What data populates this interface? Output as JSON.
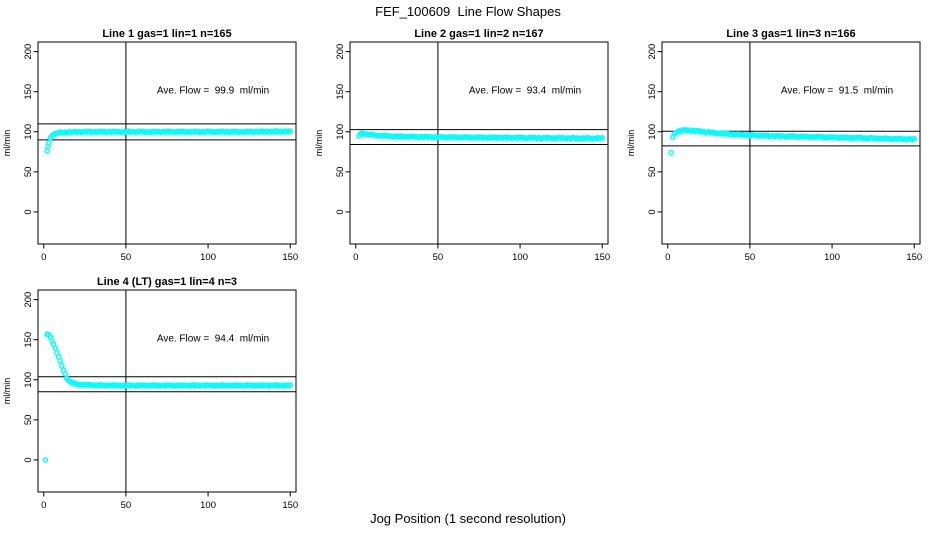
{
  "figure": {
    "title": "FEF_100609  Line Flow Shapes",
    "x_axis_label": "Jog Position (1 second resolution)",
    "background_color": "#ffffff",
    "axis_color": "#000000",
    "marker_color": "#00FFFF"
  },
  "chart_data": [
    {
      "type": "scatter",
      "title": "Line 1 gas=1 lin=1 n=165",
      "annotation": "Ave. Flow =  99.9  ml/min",
      "ave_flow_ml_min": 99.9,
      "n": 165,
      "ylabel": "ml/min",
      "x_ticks": [
        0,
        50,
        100,
        150
      ],
      "y_ticks": [
        0,
        50,
        100,
        150,
        200
      ],
      "xlim": [
        -3.5,
        153.5
      ],
      "ylim": [
        -40,
        212
      ],
      "vline_x": 50,
      "tolerance_lines": [
        89.9,
        109.9
      ],
      "marker": "open-circle",
      "marker_color": "#00FFFF",
      "curve_points": [
        [
          2.5,
          82
        ],
        [
          3,
          86
        ],
        [
          4,
          92
        ],
        [
          5,
          95.5
        ],
        [
          6,
          97
        ],
        [
          8,
          98.5
        ],
        [
          10,
          99
        ],
        [
          14,
          99.5
        ],
        [
          20,
          99.8
        ],
        [
          30,
          100
        ],
        [
          60,
          100
        ],
        [
          100,
          100
        ],
        [
          125,
          100
        ],
        [
          135,
          100.4
        ],
        [
          150,
          100.3
        ]
      ],
      "outliers": [
        [
          2,
          76
        ]
      ]
    },
    {
      "type": "scatter",
      "title": "Line 2 gas=1 lin=2 n=167",
      "annotation": "Ave. Flow =  93.4  ml/min",
      "ave_flow_ml_min": 93.4,
      "n": 167,
      "ylabel": "ml/min",
      "x_ticks": [
        0,
        50,
        100,
        150
      ],
      "y_ticks": [
        0,
        50,
        100,
        150,
        200
      ],
      "xlim": [
        -3.5,
        153.5
      ],
      "ylim": [
        -40,
        212
      ],
      "vline_x": 50,
      "tolerance_lines": [
        84.1,
        102.7
      ],
      "marker": "open-circle",
      "marker_color": "#00FFFF",
      "curve_points": [
        [
          2,
          95
        ],
        [
          3,
          97.3
        ],
        [
          4,
          98
        ],
        [
          6,
          97.4
        ],
        [
          8,
          96.7
        ],
        [
          10,
          96.1
        ],
        [
          14,
          95.4
        ],
        [
          18,
          94.9
        ],
        [
          25,
          94.3
        ],
        [
          35,
          93.8
        ],
        [
          50,
          93.4
        ],
        [
          70,
          93
        ],
        [
          90,
          92.7
        ],
        [
          110,
          92.4
        ],
        [
          130,
          92.1
        ],
        [
          150,
          91.9
        ]
      ],
      "outliers": []
    },
    {
      "type": "scatter",
      "title": "Line 3 gas=1 lin=3 n=166",
      "annotation": "Ave. Flow =  91.5  ml/min",
      "ave_flow_ml_min": 91.5,
      "n": 166,
      "ylabel": "ml/min",
      "x_ticks": [
        0,
        50,
        100,
        150
      ],
      "y_ticks": [
        0,
        50,
        100,
        150,
        200
      ],
      "xlim": [
        -3.5,
        153.5
      ],
      "ylim": [
        -40,
        212
      ],
      "vline_x": 50,
      "tolerance_lines": [
        82.4,
        100.7
      ],
      "marker": "open-circle",
      "marker_color": "#00FFFF",
      "curve_points": [
        [
          3,
          93
        ],
        [
          4,
          97
        ],
        [
          5,
          99.5
        ],
        [
          7,
          101
        ],
        [
          9,
          101.8
        ],
        [
          12,
          102
        ],
        [
          16,
          101.3
        ],
        [
          20,
          100.4
        ],
        [
          27,
          99
        ],
        [
          35,
          97.6
        ],
        [
          45,
          96.3
        ],
        [
          55,
          95.4
        ],
        [
          70,
          94.5
        ],
        [
          85,
          93.8
        ],
        [
          100,
          93.1
        ],
        [
          115,
          92.4
        ],
        [
          130,
          91.7
        ],
        [
          150,
          90.7
        ]
      ],
      "outliers": [
        [
          2,
          74
        ]
      ]
    },
    {
      "type": "scatter",
      "title": "Line 4 (LT) gas=1 lin=4 n=3",
      "annotation": "Ave. Flow =  94.4  ml/min",
      "ave_flow_ml_min": 94.4,
      "n": 3,
      "ylabel": "ml/min",
      "x_ticks": [
        0,
        50,
        100,
        150
      ],
      "y_ticks": [
        0,
        50,
        100,
        150,
        200
      ],
      "xlim": [
        -3.5,
        153.5
      ],
      "ylim": [
        -40,
        212
      ],
      "vline_x": 50,
      "tolerance_lines": [
        85.0,
        103.8
      ],
      "marker": "open-circle",
      "marker_color": "#00FFFF",
      "curve_points": [
        [
          2,
          157
        ],
        [
          3,
          156
        ],
        [
          4,
          153
        ],
        [
          5,
          149
        ],
        [
          6,
          144.5
        ],
        [
          7,
          139.5
        ],
        [
          8,
          134
        ],
        [
          9,
          128.5
        ],
        [
          10,
          123
        ],
        [
          11,
          117.5
        ],
        [
          12,
          112
        ],
        [
          13,
          107
        ],
        [
          14,
          102.5
        ],
        [
          15,
          99.5
        ],
        [
          16,
          97.8
        ],
        [
          17,
          96.5
        ],
        [
          18,
          95.6
        ],
        [
          20,
          94.7
        ],
        [
          23,
          94
        ],
        [
          27,
          93.5
        ],
        [
          32,
          93.2
        ],
        [
          40,
          93
        ],
        [
          60,
          92.9
        ],
        [
          90,
          92.9
        ],
        [
          120,
          92.9
        ],
        [
          150,
          92.9
        ]
      ],
      "outliers": [
        [
          1,
          0
        ]
      ]
    }
  ]
}
